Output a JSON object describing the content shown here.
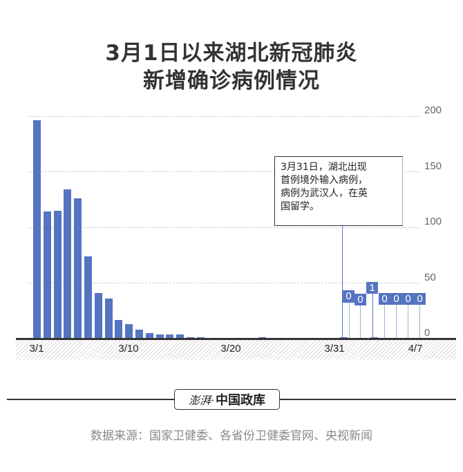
{
  "title": {
    "line1": "3月1日以来湖北新冠肺炎",
    "line2": "新增确诊病例情况"
  },
  "chart_data": {
    "type": "bar",
    "title": "3月1日以来湖北新冠肺炎新增确诊病例情况",
    "xlabel": "",
    "ylabel": "",
    "ylim": [
      0,
      200
    ],
    "yticks": [
      0,
      50,
      100,
      150,
      200
    ],
    "xtick_labels": [
      "3/1",
      "3/10",
      "3/20",
      "3/31",
      "4/7"
    ],
    "grid": true,
    "categories": [
      "3/1",
      "3/2",
      "3/3",
      "3/4",
      "3/5",
      "3/6",
      "3/7",
      "3/8",
      "3/9",
      "3/10",
      "3/11",
      "3/12",
      "3/13",
      "3/14",
      "3/15",
      "3/16",
      "3/17",
      "3/18",
      "3/19",
      "3/20",
      "3/21",
      "3/22",
      "3/23",
      "3/24",
      "3/25",
      "3/26",
      "3/27",
      "3/28",
      "3/29",
      "3/30",
      "3/31",
      "4/1",
      "4/2",
      "4/3",
      "4/4",
      "4/5",
      "4/6",
      "4/7"
    ],
    "values": [
      196,
      114,
      115,
      134,
      126,
      74,
      41,
      36,
      17,
      13,
      8,
      5,
      4,
      4,
      4,
      1,
      1,
      0,
      0,
      0,
      0,
      0,
      1,
      0,
      0,
      0,
      0,
      0,
      0,
      0,
      1,
      0,
      0,
      1,
      0,
      0,
      0,
      0
    ],
    "imported_case_labels": {
      "3/31": "0",
      "4/1": "0",
      "4/2": "1",
      "4/3": "0",
      "4/4": "0",
      "4/5": "0",
      "4/6": "0"
    },
    "color": "#5574c0",
    "annotation": "3月31日，湖北出现首例境外输入病例，病例为武汉人，在英国留学。"
  },
  "axis": {
    "y": [
      "200",
      "150",
      "100",
      "50",
      "0"
    ],
    "x": [
      "3/1",
      "3/10",
      "3/20",
      "3/31",
      "4/7"
    ]
  },
  "annotation": {
    "l1": "3月31日，湖北出现",
    "l2": "首例境外输入病例，",
    "l3": "病例为武汉人，在英",
    "l4": "国留学。"
  },
  "labels": [
    "0",
    "0",
    "1",
    "0",
    "0",
    "0",
    "0"
  ],
  "logo": {
    "brand": "澎湃·",
    "name": "中国政库"
  },
  "source": "数据来源：国家卫健委、各省份卫健委官网、央视新闻"
}
